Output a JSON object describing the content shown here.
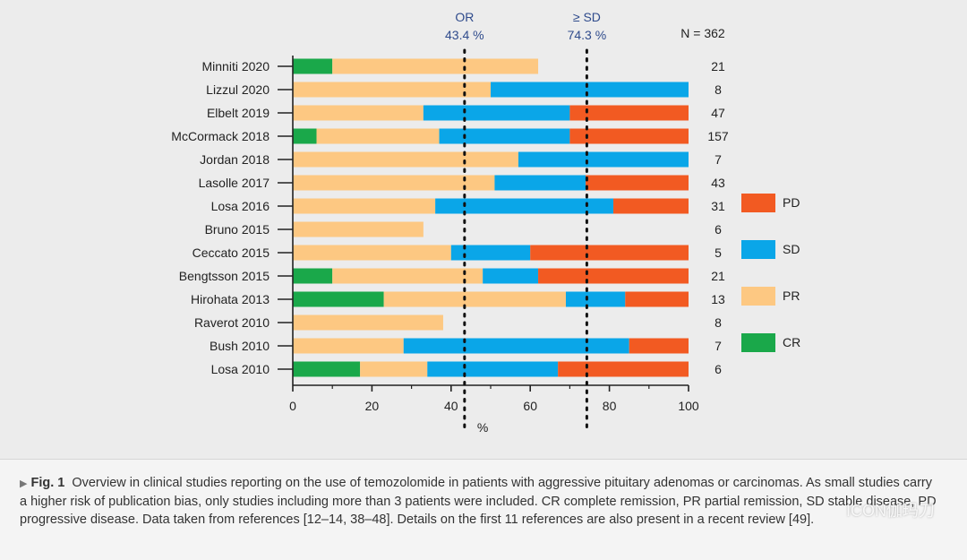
{
  "chart_data": {
    "type": "bar",
    "orientation": "horizontal",
    "stacked": true,
    "xlabel": "%",
    "xlim": [
      0,
      100
    ],
    "xticks": [
      0,
      20,
      40,
      60,
      80,
      100
    ],
    "total_label": "N = 362",
    "categories": [
      "Minniti 2020",
      "Lizzul 2020",
      "Elbelt 2019",
      "McCormack 2018",
      "Jordan 2018",
      "Lasolle 2017",
      "Losa 2016",
      "Bruno 2015",
      "Ceccato 2015",
      "Bengtsson 2015",
      "Hirohata 2013",
      "Raverot 2010",
      "Bush 2010",
      "Losa 2010"
    ],
    "n": [
      "21",
      "8",
      "47",
      "157",
      "7",
      "43",
      "31",
      "6",
      "5",
      "21",
      "13",
      "8",
      "7",
      "6"
    ],
    "series": [
      {
        "name": "CR",
        "color": "#1aa84a",
        "values": [
          10,
          0,
          0,
          6,
          0,
          0,
          0,
          0,
          0,
          10,
          23,
          0,
          0,
          17
        ]
      },
      {
        "name": "PR",
        "color": "#fdc882",
        "values": [
          52,
          50,
          33,
          31,
          57,
          51,
          36,
          33,
          40,
          38,
          46,
          38,
          28,
          17
        ]
      },
      {
        "name": "SD",
        "color": "#0aa6e8",
        "values": [
          0,
          50,
          37,
          33,
          43,
          23,
          45,
          0,
          20,
          14,
          15,
          0,
          57,
          33
        ]
      },
      {
        "name": "PD",
        "color": "#f25a22",
        "values": [
          0,
          0,
          30,
          30,
          0,
          26,
          19,
          0,
          40,
          38,
          16,
          0,
          15,
          33
        ]
      }
    ],
    "legend_order": [
      "PD",
      "SD",
      "PR",
      "CR"
    ],
    "legend_position": "right",
    "reference_lines": [
      {
        "label": "OR",
        "value_label": "43.4 %",
        "x": 43.4
      },
      {
        "label": "≥ SD",
        "value_label": "74.3 %",
        "x": 74.3
      }
    ]
  },
  "caption": {
    "figure_label": "Fig. 1",
    "text": "Overview in clinical studies reporting on the use of temozolomide in patients with aggressive pituitary adenomas or carcinomas. As small studies carry a higher risk of publication bias, only studies including more than 3 patients were included. CR complete remission, PR partial remission, SD stable disease, PD progressive disease. Data taken from references [12–14, 38–48]. Details on the first 11 references are also present in a recent review [49]."
  },
  "watermark": "ICON伽玛刀"
}
